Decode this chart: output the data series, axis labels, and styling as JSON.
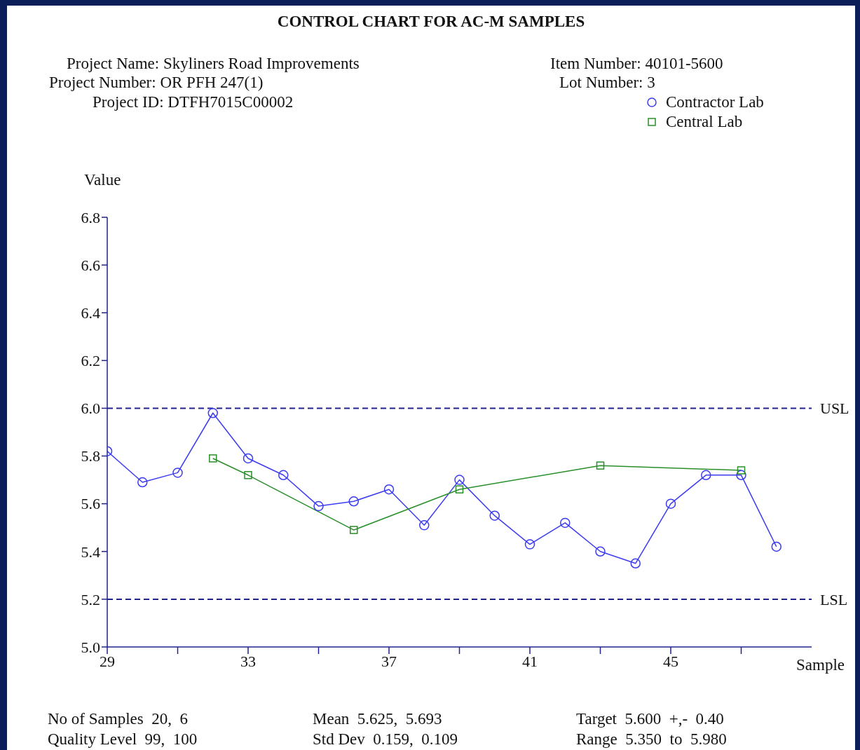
{
  "chart_data": {
    "type": "line",
    "title": "CONTROL CHART FOR AC-M SAMPLES",
    "annotations": [
      "Project Name: Skyliners Road Improvements",
      "Project Number: OR PFH 247(1)",
      "Project ID: DTFH7015C00002",
      "Item Number: 40101-5600",
      "Lot Number: 3",
      "No of Samples  20,  6",
      "Quality Level  99,  100",
      "Mean  5.625,  5.693",
      "Std Dev  0.159,  0.109",
      "Target  5.600  +,-  0.40",
      "Range  5.350  to  5.980"
    ],
    "xlabel": "Sample",
    "ylabel": "Value",
    "series": [
      {
        "name": "Contractor Lab",
        "color": "#3c3cf0",
        "marker": "circle",
        "x": [
          29,
          30,
          31,
          32,
          33,
          34,
          35,
          36,
          37,
          38,
          39,
          40,
          41,
          42,
          43,
          44,
          45,
          46,
          47,
          48
        ],
        "values": [
          5.82,
          5.69,
          5.73,
          5.98,
          5.79,
          5.72,
          5.59,
          5.61,
          5.66,
          5.51,
          5.7,
          5.55,
          5.43,
          5.52,
          5.4,
          5.35,
          5.6,
          5.72,
          5.72,
          5.42
        ]
      },
      {
        "name": "Central Lab",
        "color": "#2a8f2a",
        "marker": "square",
        "x": [
          32,
          33,
          36,
          39,
          43,
          47
        ],
        "values": [
          5.79,
          5.72,
          5.49,
          5.66,
          5.76,
          5.74
        ]
      }
    ],
    "xlim": [
      29,
      49
    ],
    "xticks": [
      29,
      {
        "value": 31,
        "label": null
      },
      33,
      {
        "value": 35,
        "label": null
      },
      37,
      {
        "value": 39,
        "label": null
      },
      41,
      {
        "value": 43,
        "label": null
      },
      45,
      {
        "value": 47,
        "label": null
      }
    ],
    "ylim": [
      5.0,
      6.8
    ],
    "yticks": [
      {
        "value": 5,
        "label": "5.0"
      },
      5.2,
      5.4,
      5.6,
      5.8,
      {
        "value": 6,
        "label": "6.0"
      },
      6.2,
      6.4,
      6.6,
      6.8
    ],
    "ref_lines": [
      {
        "axis": "y",
        "value": 6.0,
        "label": "USL",
        "color": "#22228c",
        "line_style": "dashed"
      },
      {
        "axis": "y",
        "value": 5.2,
        "label": "LSL",
        "color": "#22228c",
        "line_style": "dashed"
      }
    ],
    "grid": false,
    "legend": "top right"
  }
}
